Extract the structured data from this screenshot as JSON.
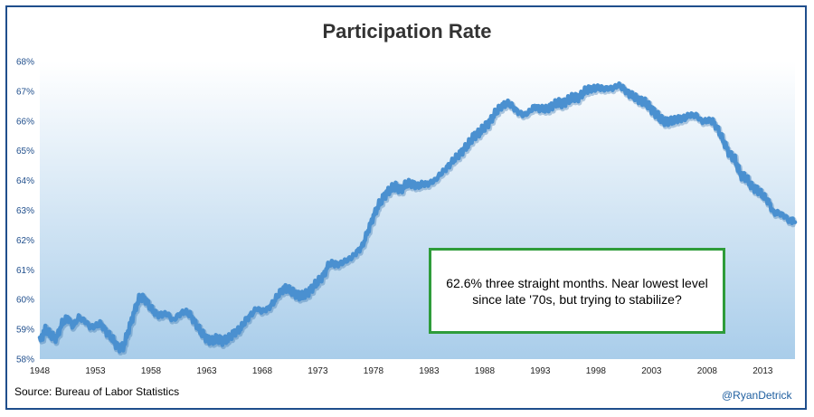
{
  "chart_data": {
    "type": "line",
    "title": "Participation Rate",
    "y_ticks": [
      "58%",
      "59%",
      "60%",
      "61%",
      "62%",
      "63%",
      "64%",
      "65%",
      "66%",
      "67%",
      "68%"
    ],
    "x_ticks": [
      "1948",
      "1953",
      "1958",
      "1963",
      "1968",
      "1973",
      "1978",
      "1983",
      "1988",
      "1993",
      "1998",
      "2003",
      "2008",
      "2013"
    ],
    "ylim": [
      58,
      68
    ],
    "xlim": [
      1948,
      2015.9
    ],
    "grid": false,
    "series": [
      {
        "color": "#4a90d0",
        "points": [
          [
            1948.0,
            58.6
          ],
          [
            1948.5,
            59.0
          ],
          [
            1949.0,
            58.8
          ],
          [
            1949.5,
            58.7
          ],
          [
            1950.0,
            59.2
          ],
          [
            1950.5,
            59.4
          ],
          [
            1951.0,
            59.1
          ],
          [
            1951.5,
            59.4
          ],
          [
            1952.0,
            59.3
          ],
          [
            1952.5,
            59.1
          ],
          [
            1953.0,
            59.1
          ],
          [
            1953.5,
            59.2
          ],
          [
            1954.0,
            58.9
          ],
          [
            1954.5,
            58.7
          ],
          [
            1955.0,
            58.4
          ],
          [
            1955.5,
            58.4
          ],
          [
            1956.0,
            59.0
          ],
          [
            1956.5,
            59.6
          ],
          [
            1957.0,
            60.1
          ],
          [
            1957.5,
            60.0
          ],
          [
            1958.0,
            59.7
          ],
          [
            1958.5,
            59.5
          ],
          [
            1959.0,
            59.5
          ],
          [
            1959.5,
            59.5
          ],
          [
            1960.0,
            59.3
          ],
          [
            1960.5,
            59.5
          ],
          [
            1961.0,
            59.6
          ],
          [
            1961.5,
            59.5
          ],
          [
            1962.0,
            59.2
          ],
          [
            1962.5,
            58.9
          ],
          [
            1963.0,
            58.7
          ],
          [
            1963.5,
            58.6
          ],
          [
            1964.0,
            58.7
          ],
          [
            1964.5,
            58.6
          ],
          [
            1965.0,
            58.7
          ],
          [
            1965.5,
            58.9
          ],
          [
            1966.0,
            59.0
          ],
          [
            1966.5,
            59.3
          ],
          [
            1967.0,
            59.5
          ],
          [
            1967.5,
            59.7
          ],
          [
            1968.0,
            59.6
          ],
          [
            1968.5,
            59.7
          ],
          [
            1969.0,
            59.9
          ],
          [
            1969.5,
            60.2
          ],
          [
            1970.0,
            60.4
          ],
          [
            1970.5,
            60.3
          ],
          [
            1971.0,
            60.2
          ],
          [
            1971.5,
            60.1
          ],
          [
            1972.0,
            60.2
          ],
          [
            1972.5,
            60.4
          ],
          [
            1973.0,
            60.6
          ],
          [
            1973.5,
            60.8
          ],
          [
            1974.0,
            61.2
          ],
          [
            1974.5,
            61.2
          ],
          [
            1975.0,
            61.2
          ],
          [
            1975.5,
            61.3
          ],
          [
            1976.0,
            61.4
          ],
          [
            1976.5,
            61.6
          ],
          [
            1977.0,
            61.8
          ],
          [
            1977.5,
            62.3
          ],
          [
            1978.0,
            62.8
          ],
          [
            1978.5,
            63.2
          ],
          [
            1979.0,
            63.5
          ],
          [
            1979.5,
            63.7
          ],
          [
            1980.0,
            63.8
          ],
          [
            1980.5,
            63.7
          ],
          [
            1981.0,
            63.9
          ],
          [
            1981.5,
            63.9
          ],
          [
            1982.0,
            63.8
          ],
          [
            1982.5,
            63.9
          ],
          [
            1983.0,
            63.9
          ],
          [
            1983.5,
            64.0
          ],
          [
            1984.0,
            64.2
          ],
          [
            1984.5,
            64.4
          ],
          [
            1985.0,
            64.6
          ],
          [
            1985.5,
            64.8
          ],
          [
            1986.0,
            65.0
          ],
          [
            1986.5,
            65.2
          ],
          [
            1987.0,
            65.5
          ],
          [
            1987.5,
            65.6
          ],
          [
            1988.0,
            65.8
          ],
          [
            1988.5,
            66.0
          ],
          [
            1989.0,
            66.3
          ],
          [
            1989.5,
            66.5
          ],
          [
            1990.0,
            66.6
          ],
          [
            1990.5,
            66.5
          ],
          [
            1991.0,
            66.3
          ],
          [
            1991.5,
            66.2
          ],
          [
            1992.0,
            66.3
          ],
          [
            1992.5,
            66.5
          ],
          [
            1993.0,
            66.4
          ],
          [
            1993.5,
            66.4
          ],
          [
            1994.0,
            66.5
          ],
          [
            1994.5,
            66.6
          ],
          [
            1995.0,
            66.6
          ],
          [
            1995.5,
            66.7
          ],
          [
            1996.0,
            66.8
          ],
          [
            1996.5,
            66.8
          ],
          [
            1997.0,
            67.0
          ],
          [
            1997.5,
            67.1
          ],
          [
            1998.0,
            67.1
          ],
          [
            1998.5,
            67.1
          ],
          [
            1999.0,
            67.1
          ],
          [
            1999.5,
            67.1
          ],
          [
            2000.0,
            67.2
          ],
          [
            2000.5,
            67.1
          ],
          [
            2001.0,
            66.9
          ],
          [
            2001.5,
            66.8
          ],
          [
            2002.0,
            66.7
          ],
          [
            2002.5,
            66.6
          ],
          [
            2003.0,
            66.4
          ],
          [
            2003.5,
            66.2
          ],
          [
            2004.0,
            66.0
          ],
          [
            2004.5,
            66.0
          ],
          [
            2005.0,
            66.0
          ],
          [
            2005.5,
            66.1
          ],
          [
            2006.0,
            66.1
          ],
          [
            2006.5,
            66.2
          ],
          [
            2007.0,
            66.2
          ],
          [
            2007.5,
            66.0
          ],
          [
            2008.0,
            66.0
          ],
          [
            2008.5,
            66.0
          ],
          [
            2009.0,
            65.7
          ],
          [
            2009.5,
            65.3
          ],
          [
            2010.0,
            64.9
          ],
          [
            2010.5,
            64.7
          ],
          [
            2011.0,
            64.2
          ],
          [
            2011.5,
            64.1
          ],
          [
            2012.0,
            63.8
          ],
          [
            2012.5,
            63.7
          ],
          [
            2013.0,
            63.5
          ],
          [
            2013.5,
            63.3
          ],
          [
            2014.0,
            62.9
          ],
          [
            2014.5,
            62.9
          ],
          [
            2015.0,
            62.8
          ],
          [
            2015.5,
            62.6
          ],
          [
            2015.9,
            62.6
          ]
        ]
      }
    ]
  },
  "source_text": "Source:  Bureau of Labor Statistics",
  "handle": "@RyanDetrick",
  "note_text": "62.6% three straight months. Near lowest level since late '70s, but trying to stabilize?",
  "colors": {
    "line": "#4a90d0",
    "plot_top": "#ffffff",
    "plot_bottom": "#a9cdea",
    "tick_label": "#1f4e8c",
    "frame": "#1f4e8c",
    "note_border": "#2e9c3a"
  }
}
